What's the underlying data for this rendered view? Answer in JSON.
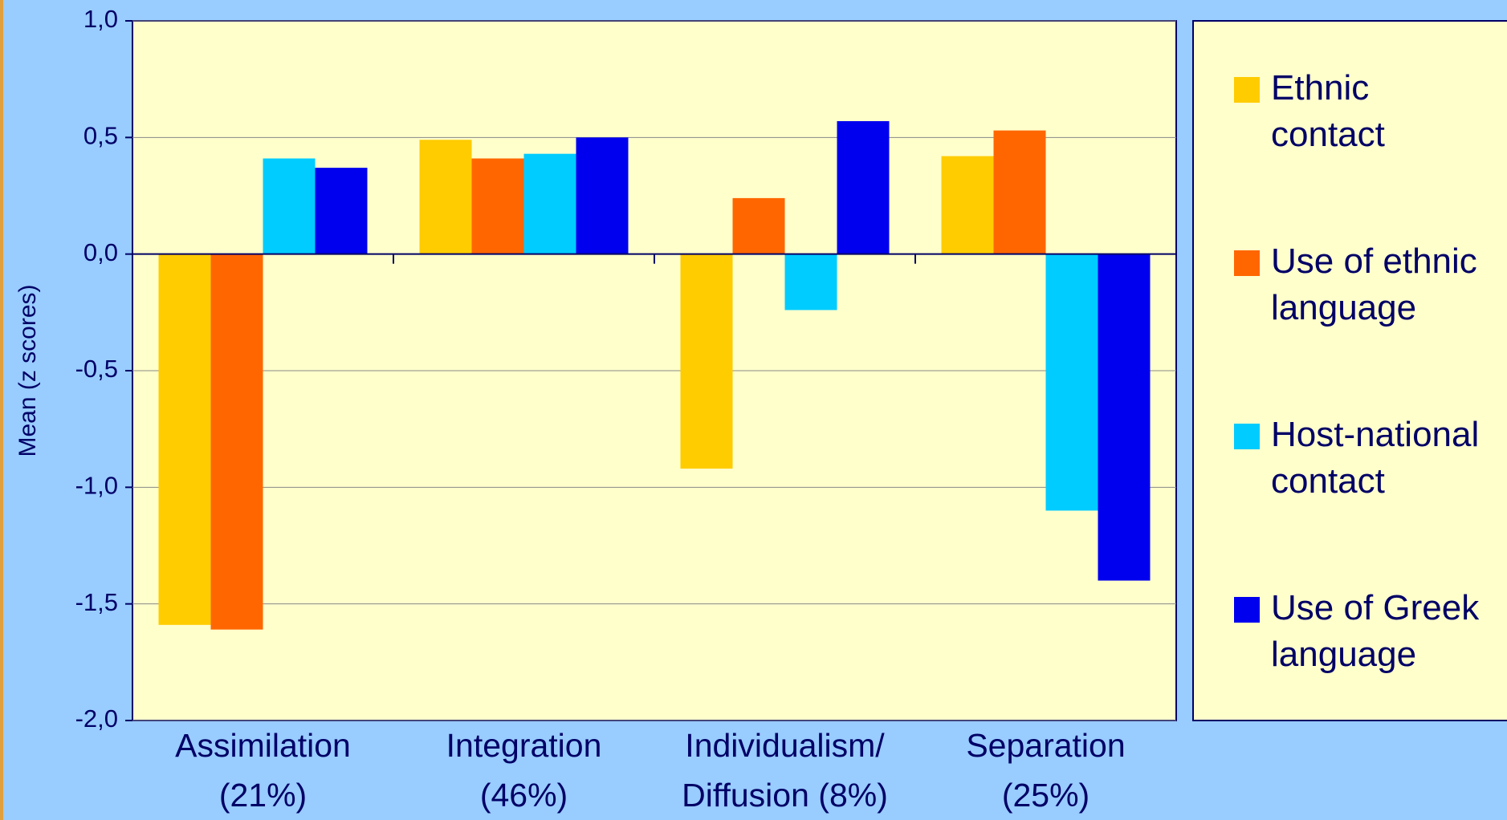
{
  "chart_data": {
    "type": "bar",
    "y_label": "Mean (z scores)",
    "categories": [
      "Assimilation\n(21%)",
      "Integration\n(46%)",
      "Individualism/\nDiffusion (8%)",
      "Separation\n(25%)"
    ],
    "series": [
      {
        "name": "Ethnic\ncontact",
        "color": "#ffcc00",
        "values": [
          -1.59,
          0.49,
          -0.92,
          0.42
        ]
      },
      {
        "name": "Use of ethnic\nlanguage",
        "color": "#ff6600",
        "values": [
          -1.61,
          0.41,
          0.24,
          0.53
        ]
      },
      {
        "name": "Host-national\ncontact",
        "color": "#00ccff",
        "values": [
          0.41,
          0.43,
          -0.24,
          -1.1
        ]
      },
      {
        "name": "Use of Greek\nlanguage",
        "color": "#0000ee",
        "values": [
          0.37,
          0.5,
          0.57,
          -1.4
        ]
      }
    ],
    "ylim": [
      -2.0,
      1.0
    ],
    "yticks": [
      {
        "value": 1.0,
        "label": "1,0"
      },
      {
        "value": 0.5,
        "label": "0,5"
      },
      {
        "value": 0.0,
        "label": "0,0"
      },
      {
        "value": -0.5,
        "label": "-0,5"
      },
      {
        "value": -1.0,
        "label": "-1,0"
      },
      {
        "value": -1.5,
        "label": "-1,5"
      },
      {
        "value": -2.0,
        "label": "-2,0"
      }
    ],
    "grid": true
  }
}
